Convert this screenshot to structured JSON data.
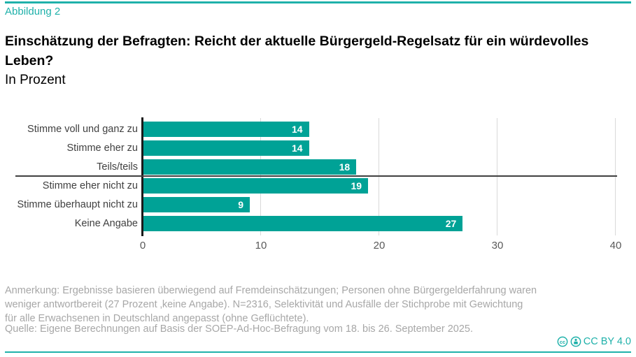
{
  "figure_label": "Abbildung 2",
  "title": "Einschätzung der Befragten: Reicht der aktuelle Bürgergeld-Regelsatz für ein würdevolles Leben?",
  "subtitle": "In Prozent",
  "chart_data": {
    "type": "bar",
    "orientation": "horizontal",
    "categories": [
      "Stimme voll und ganz zu",
      "Stimme eher zu",
      "Teils/teils",
      "Stimme eher nicht zu",
      "Stimme überhaupt nicht zu",
      "Keine Angabe"
    ],
    "values": [
      14,
      14,
      18,
      19,
      9,
      27
    ],
    "value_labels": [
      "14",
      "14",
      "18",
      "19",
      "9",
      "27"
    ],
    "x_ticks": [
      "0",
      "10",
      "20",
      "30",
      "40"
    ],
    "xlim": [
      0,
      40
    ],
    "grid": true,
    "separator_after_index": 2,
    "title": "Einschätzung der Befragten: Reicht der aktuelle Bürgergeld-Regelsatz für ein würdevolles Leben?",
    "xlabel": "",
    "ylabel": "",
    "legend": "none"
  },
  "notes": {
    "lines": [
      "Anmerkung: Ergebnisse basieren überwiegend auf Fremdeinschätzungen; Personen ohne Bürgergelderfahrung waren",
      "weniger antwortbereit (27 Prozent ‚keine Angabe). N=2316, Selektivität und Ausfälle der Stichprobe mit Gewichtung",
      "für alle Erwachsenen in Deutschland angepasst (ohne Geflüchtete)."
    ],
    "source": "Quelle: Eigene Berechnungen auf Basis der SOEP-Ad-Hoc-Befragung vom 18. bis 26. September 2025."
  },
  "license": {
    "label": "CC BY 4.0",
    "icons": [
      "cc-icon",
      "attribution-icon"
    ]
  },
  "colors": {
    "accent_teal": "#00A296",
    "rule_teal": "#1FB1AA",
    "bar_value_text": "#FFFFFF",
    "category_label": "#404040",
    "tick_label": "#595959",
    "note_gray": "#A7A7A7",
    "separator": "#404040",
    "gridline": "#D9D9D9",
    "axis_line": "#1A1A1A"
  }
}
